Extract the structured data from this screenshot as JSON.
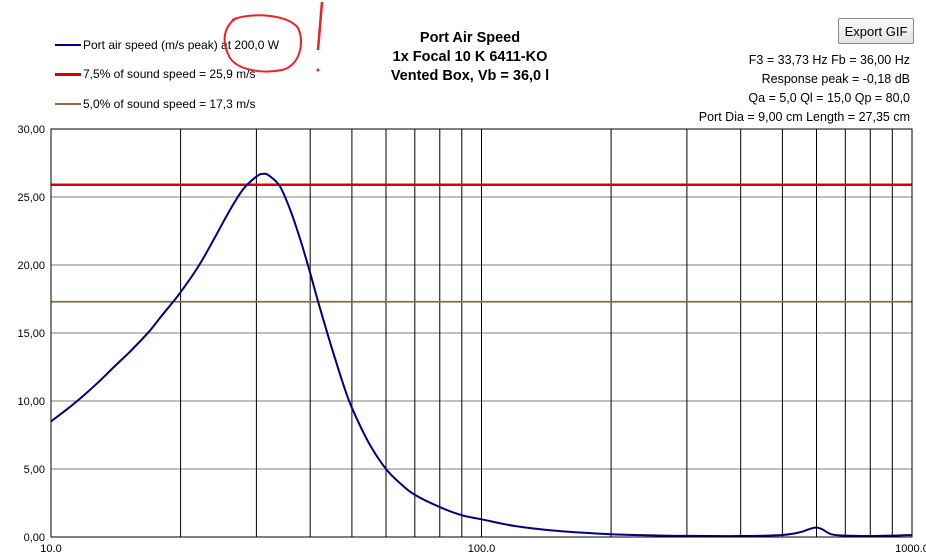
{
  "export_button": {
    "label": "Export GIF"
  },
  "chart_data": {
    "type": "line",
    "title": [
      "Port Air  Speed",
      "1x Focal 10 K 6411-KO",
      "Vented Box, Vb = 36,0 l"
    ],
    "xscale": "log",
    "xlim": [
      10,
      1000
    ],
    "ylim": [
      0,
      30
    ],
    "x_tick_labels": [
      "10.0",
      "100.0",
      "1000.0"
    ],
    "y_tick_labels": [
      "0,00",
      "5,00",
      "10,00",
      "15,00",
      "20,00",
      "25,00",
      "30,00"
    ],
    "grid": true,
    "legend_position": "top-left",
    "info_lines": [
      "F3 = 33,73 Hz  Fb = 36,00 Hz",
      "Response peak = -0,18 dB",
      "Qa = 5,0  Ql = 15,0  Qp = 80,0",
      "Port Dia = 9,00  cm  Length = 27,35  cm"
    ],
    "series": [
      {
        "name": "Port air speed (m/s peak) at 200,0 W",
        "color": "#000080",
        "points": [
          [
            10,
            8.5
          ],
          [
            11,
            9.5
          ],
          [
            12,
            10.5
          ],
          [
            13,
            11.5
          ],
          [
            14,
            12.5
          ],
          [
            15,
            13.4
          ],
          [
            16,
            14.3
          ],
          [
            17,
            15.2
          ],
          [
            18,
            16.2
          ],
          [
            19,
            17.1
          ],
          [
            20,
            18.0
          ],
          [
            22,
            19.9
          ],
          [
            24,
            22.0
          ],
          [
            26,
            24.0
          ],
          [
            28,
            25.6
          ],
          [
            30,
            26.5
          ],
          [
            31,
            26.7
          ],
          [
            32,
            26.6
          ],
          [
            34,
            25.8
          ],
          [
            36,
            24.0
          ],
          [
            38,
            21.8
          ],
          [
            40,
            19.4
          ],
          [
            42,
            17.0
          ],
          [
            45,
            13.8
          ],
          [
            48,
            11.0
          ],
          [
            50,
            9.5
          ],
          [
            55,
            6.8
          ],
          [
            60,
            5.0
          ],
          [
            65,
            3.9
          ],
          [
            70,
            3.1
          ],
          [
            80,
            2.2
          ],
          [
            90,
            1.6
          ],
          [
            100,
            1.3
          ],
          [
            120,
            0.8
          ],
          [
            150,
            0.45
          ],
          [
            200,
            0.2
          ],
          [
            250,
            0.12
          ],
          [
            300,
            0.08
          ],
          [
            400,
            0.07
          ],
          [
            500,
            0.15
          ],
          [
            550,
            0.35
          ],
          [
            580,
            0.6
          ],
          [
            600,
            0.7
          ],
          [
            620,
            0.55
          ],
          [
            650,
            0.2
          ],
          [
            700,
            0.1
          ],
          [
            800,
            0.07
          ],
          [
            900,
            0.1
          ],
          [
            1000,
            0.15
          ]
        ]
      },
      {
        "name": "7,5% of sound speed = 25,9 m/s",
        "color": "#dd0000",
        "y": 25.9
      },
      {
        "name": "5,0% of sound speed = 17,3 m/s",
        "color": "#8b6a3e",
        "y": 17.3
      }
    ]
  }
}
